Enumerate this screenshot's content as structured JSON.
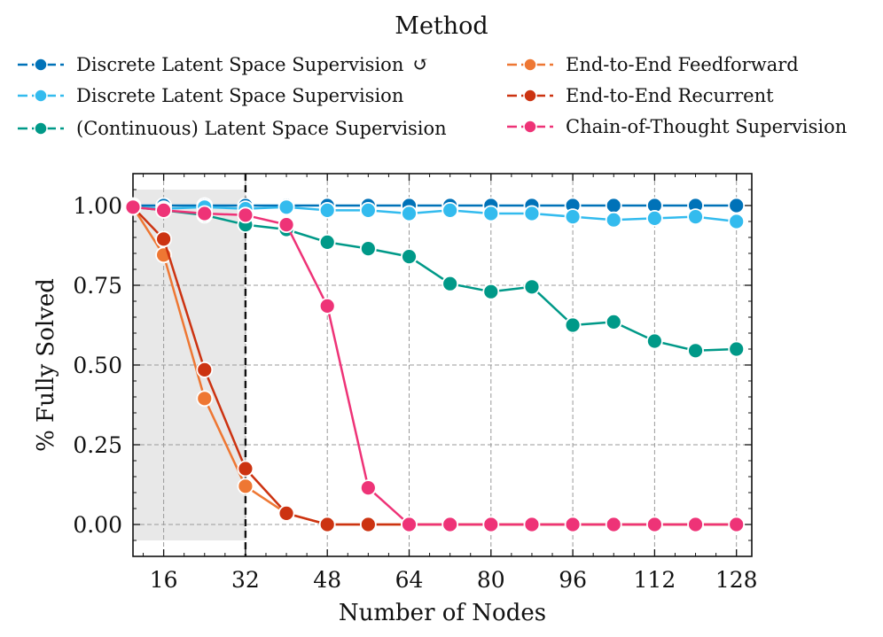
{
  "chart_data": {
    "type": "line",
    "title": "",
    "xlabel": "Number of Nodes",
    "ylabel": "% Fully Solved",
    "xlim": [
      10,
      131
    ],
    "ylim": [
      -0.1,
      1.1
    ],
    "xticks": [
      16,
      32,
      48,
      64,
      80,
      96,
      112,
      128
    ],
    "yticks": [
      0.0,
      0.25,
      0.5,
      0.75,
      1.0
    ],
    "xtick_labels": [
      "16",
      "32",
      "48",
      "64",
      "80",
      "96",
      "112",
      "128"
    ],
    "ytick_labels": [
      "0.00",
      "0.25",
      "0.50",
      "0.75",
      "1.00"
    ],
    "grid": true,
    "shaded_region": {
      "x0": 10,
      "x1": 32,
      "y0": -0.05,
      "y1": 1.05
    },
    "vline": {
      "x": 32,
      "style": "dashed"
    },
    "legend": {
      "title": "Method",
      "placement": "top"
    },
    "series": [
      {
        "name": "Discrete Latent Space Supervision",
        "suffix": "↺",
        "color": "#0072b8",
        "x": [
          10,
          16,
          24,
          32,
          40,
          48,
          56,
          64,
          72,
          80,
          88,
          96,
          104,
          112,
          120,
          128
        ],
        "y": [
          1.0,
          1.0,
          1.0,
          1.0,
          1.0,
          1.0,
          1.0,
          1.0,
          1.0,
          1.0,
          1.0,
          1.0,
          1.0,
          1.0,
          1.0,
          1.0
        ]
      },
      {
        "name": "Discrete Latent Space Supervision",
        "suffix": "",
        "color": "#33bbee",
        "x": [
          10,
          16,
          24,
          32,
          40,
          48,
          56,
          64,
          72,
          80,
          88,
          96,
          104,
          112,
          120,
          128
        ],
        "y": [
          0.995,
          0.99,
          0.995,
          0.99,
          0.995,
          0.985,
          0.985,
          0.975,
          0.985,
          0.975,
          0.975,
          0.965,
          0.955,
          0.96,
          0.965,
          0.95
        ]
      },
      {
        "name": "(Continuous) Latent Space Supervision",
        "suffix": "",
        "color": "#009988",
        "x": [
          10,
          16,
          24,
          32,
          40,
          48,
          56,
          64,
          72,
          80,
          88,
          96,
          104,
          112,
          120,
          128
        ],
        "y": [
          0.995,
          0.985,
          0.97,
          0.94,
          0.925,
          0.885,
          0.865,
          0.84,
          0.755,
          0.73,
          0.745,
          0.625,
          0.635,
          0.575,
          0.545,
          0.55
        ]
      },
      {
        "name": "End-to-End Feedforward",
        "suffix": "",
        "color": "#ee7733",
        "x": [
          10,
          16,
          24,
          32,
          40,
          48,
          56,
          64,
          72,
          80,
          88,
          96,
          104,
          112,
          120,
          128
        ],
        "y": [
          0.995,
          0.845,
          0.395,
          0.12,
          0.035,
          0.0,
          0.0,
          0.0,
          0.0,
          0.0,
          0.0,
          0.0,
          0.0,
          0.0,
          0.0,
          0.0
        ]
      },
      {
        "name": "End-to-End Recurrent",
        "suffix": "",
        "color": "#cc3311",
        "x": [
          10,
          16,
          24,
          32,
          40,
          48,
          56,
          64,
          72,
          80,
          88,
          96,
          104,
          112,
          120,
          128
        ],
        "y": [
          0.995,
          0.895,
          0.485,
          0.175,
          0.035,
          0.0,
          0.0,
          0.0,
          0.0,
          0.0,
          0.0,
          0.0,
          0.0,
          0.0,
          0.0,
          0.0
        ]
      },
      {
        "name": "Chain-of-Thought Supervision",
        "suffix": "",
        "color": "#ee3377",
        "x": [
          10,
          16,
          24,
          32,
          40,
          48,
          56,
          64,
          72,
          80,
          88,
          96,
          104,
          112,
          120,
          128
        ],
        "y": [
          0.995,
          0.985,
          0.975,
          0.97,
          0.94,
          0.685,
          0.115,
          0.0,
          0.0,
          0.0,
          0.0,
          0.0,
          0.0,
          0.0,
          0.0,
          0.0
        ]
      }
    ]
  }
}
